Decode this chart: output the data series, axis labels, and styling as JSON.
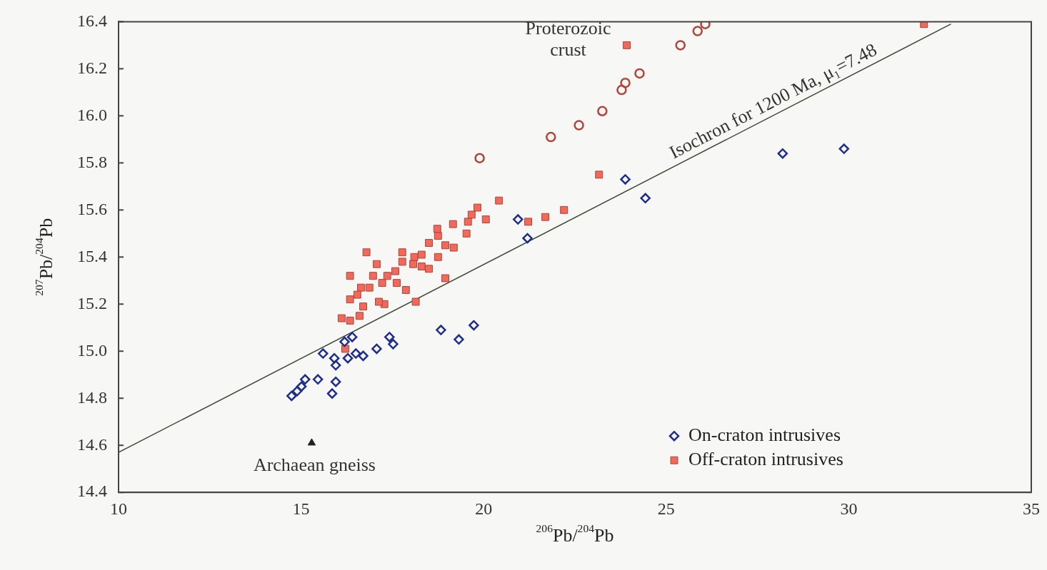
{
  "chart_data": {
    "type": "scatter",
    "xlabel": "$^{206}$Pb/$^{204}$Pb",
    "ylabel": "$^{207}$Pb/$^{204}$Pb",
    "xlim": [
      10,
      35
    ],
    "xticks": [
      10,
      15,
      20,
      25,
      30,
      35
    ],
    "ylim": [
      14.4,
      16.4
    ],
    "yticks": [
      14.4,
      14.6,
      14.8,
      {
        "value": 15,
        "label": "15.0"
      },
      15.2,
      15.4,
      15.6,
      15.8,
      {
        "value": 16,
        "label": "16.0"
      },
      16.2,
      16.4
    ],
    "grid": false,
    "legend": "bottom right",
    "series": [
      {
        "name": "On-craton intrusives",
        "type": "scatter",
        "marker": "diamond",
        "color": "#1f2d8c",
        "x": [
          15.6,
          16.4,
          16.19,
          17.42,
          17.52,
          17.07,
          15.91,
          16.28,
          16.5,
          16.7,
          15.95,
          15.46,
          15.11,
          15.95,
          18.83,
          19.32,
          19.73,
          15.85,
          14.74,
          14.89,
          15.01,
          23.88,
          24.43,
          20.94,
          21.2,
          28.19,
          29.87
        ],
        "values": [
          14.99,
          15.06,
          15.04,
          15.06,
          15.03,
          15.01,
          14.97,
          14.97,
          14.99,
          14.98,
          14.94,
          14.88,
          14.88,
          14.87,
          15.09,
          15.05,
          15.11,
          14.82,
          14.81,
          14.83,
          14.85,
          15.73,
          15.65,
          15.56,
          15.48,
          15.84,
          15.86
        ]
      },
      {
        "name": "Off-craton intrusives",
        "type": "scatter",
        "marker": "square",
        "color": "#f2685a",
        "x": [
          16.79,
          17.07,
          16.34,
          16.97,
          17.36,
          17.58,
          17.77,
          17.77,
          18.1,
          18.07,
          18.3,
          18.3,
          18.5,
          18.5,
          18.75,
          18.75,
          18.95,
          19.18,
          19.53,
          18.95,
          18.14,
          17.87,
          17.62,
          17.22,
          17.28,
          17.13,
          16.87,
          16.64,
          16.54,
          16.34,
          16.7,
          16.6,
          16.34,
          16.11,
          16.21,
          18.73,
          19.16,
          19.57,
          20.06,
          19.83,
          19.67,
          20.42,
          21.22,
          21.69,
          22.2,
          23.16,
          23.92,
          32.06
        ],
        "values": [
          15.42,
          15.37,
          15.32,
          15.32,
          15.32,
          15.34,
          15.38,
          15.42,
          15.4,
          15.37,
          15.41,
          15.36,
          15.35,
          15.46,
          15.4,
          15.49,
          15.45,
          15.44,
          15.5,
          15.31,
          15.21,
          15.26,
          15.29,
          15.29,
          15.2,
          15.21,
          15.27,
          15.27,
          15.24,
          15.22,
          15.19,
          15.15,
          15.13,
          15.14,
          15.01,
          15.52,
          15.54,
          15.55,
          15.56,
          15.61,
          15.58,
          15.64,
          15.55,
          15.57,
          15.6,
          15.75,
          16.3,
          16.39
        ]
      },
      {
        "type": "scatter",
        "marker": "circle",
        "color": "#b3443a",
        "x": [
          19.89,
          21.84,
          22.61,
          23.25,
          23.78,
          23.88,
          24.27,
          25.39,
          25.86,
          26.07
        ],
        "values": [
          15.82,
          15.91,
          15.96,
          16.02,
          16.11,
          16.14,
          16.18,
          16.3,
          16.36,
          16.39
        ]
      },
      {
        "type": "scatter",
        "marker": "triangle",
        "color": "#222222",
        "x": [
          15.29
        ],
        "values": [
          14.61
        ]
      },
      {
        "type": "line",
        "marker": "none",
        "line_style": "solid",
        "color": "#3c4a34",
        "x": [
          10,
          32.8
        ],
        "values": [
          14.57,
          16.39
        ]
      }
    ],
    "annotations": [
      {
        "text": "Isochron for 1200 Ma, μ$_{1}$=7.48",
        "x": 28.1,
        "y": 16.01
      },
      "Proterozoic\ncrust",
      "Archaean gneiss"
    ]
  }
}
